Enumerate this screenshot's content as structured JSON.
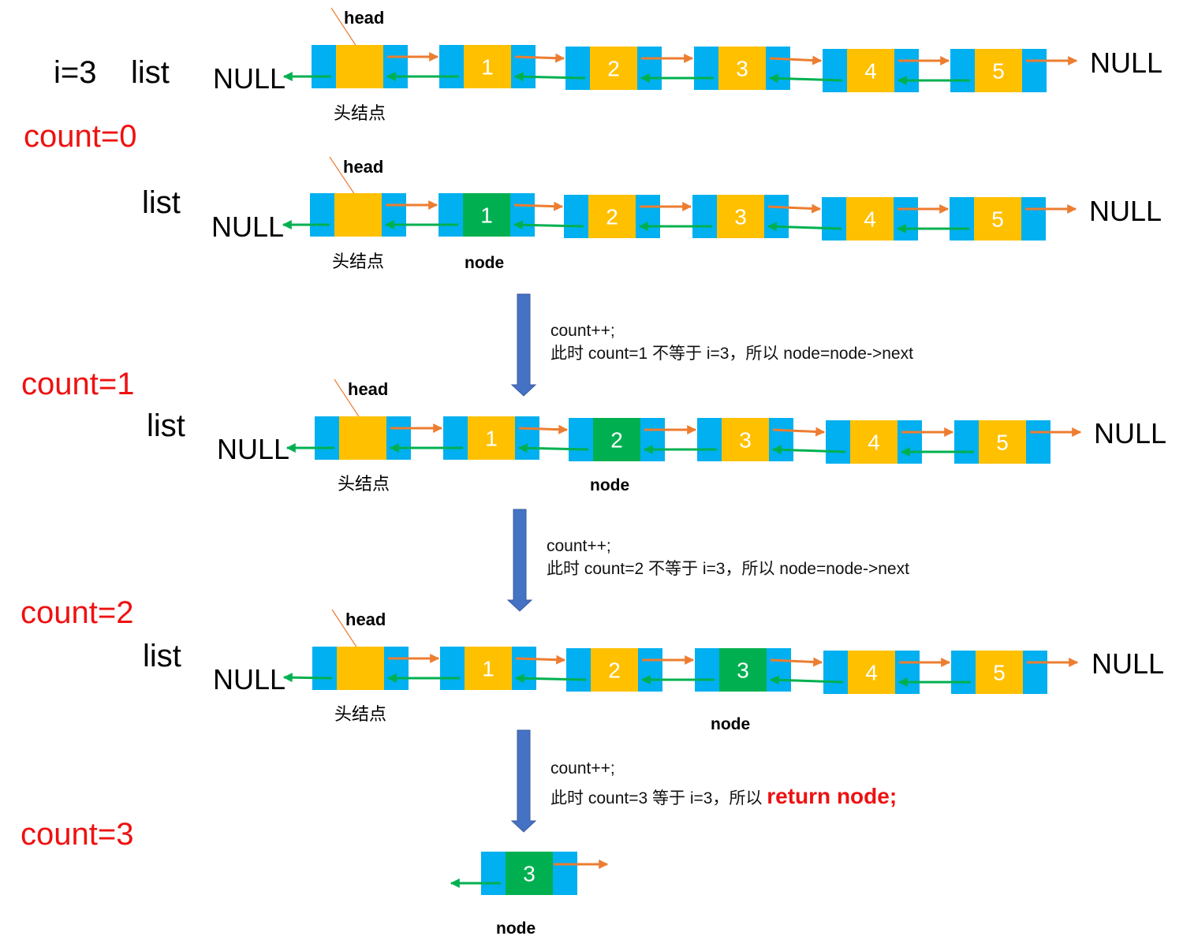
{
  "colors": {
    "pointer_cell": "#00b0f0",
    "data_cell": "#ffc000",
    "current_cell": "#00b050",
    "next_arrow": "#ed7d31",
    "prev_arrow": "#00b050",
    "step_arrow": "#4472c4",
    "count_text": "#ee1111"
  },
  "header": {
    "i_label": "i=3",
    "list_label": "list"
  },
  "labels": {
    "null": "NULL",
    "head": "head",
    "head_node": "头结点",
    "node": "node",
    "list": "list"
  },
  "rows": [
    {
      "count": "count=0",
      "values": [
        "1",
        "2",
        "3",
        "4",
        "5"
      ],
      "current": null
    },
    {
      "count": "",
      "values": [
        "1",
        "2",
        "3",
        "4",
        "5"
      ],
      "current": 0
    },
    {
      "count": "count=1",
      "values": [
        "1",
        "2",
        "3",
        "4",
        "5"
      ],
      "current": 1
    },
    {
      "count": "count=2",
      "values": [
        "1",
        "2",
        "3",
        "4",
        "5"
      ],
      "current": 2
    }
  ],
  "steps": [
    {
      "line1": "count++;",
      "line2": "此时 count=1 不等于 i=3，所以 node=node->next"
    },
    {
      "line1": "count++;",
      "line2": "此时 count=2 不等于 i=3，所以 node=node->next"
    },
    {
      "line1": "count++;",
      "line2_prefix": "此时 count=3 等于 i=3，所以 ",
      "line2_emph": "return node;"
    }
  ],
  "final": {
    "count": "count=3",
    "value": "3",
    "node_label": "node"
  }
}
